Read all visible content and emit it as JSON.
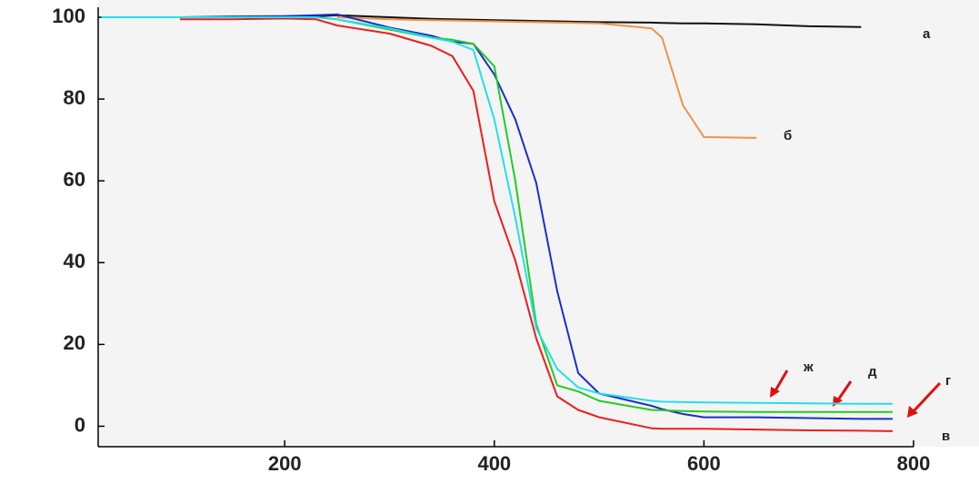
{
  "chart_data": {
    "type": "line",
    "x": [
      25,
      100,
      150,
      200,
      230,
      250,
      300,
      340,
      360,
      380,
      400,
      420,
      440,
      460,
      480,
      500,
      550,
      560,
      580,
      600,
      650,
      700,
      750,
      780
    ],
    "series": [
      {
        "name": "а",
        "color": "#111111",
        "values": [
          100,
          100,
          100,
          100,
          100.2,
          100.5,
          100,
          99.6,
          99.5,
          99.4,
          99.3,
          99.2,
          99.1,
          99,
          98.9,
          98.8,
          98.7,
          98.6,
          98.5,
          98.5,
          98.3,
          97.8,
          97.6,
          null
        ]
      },
      {
        "name": "б",
        "color": "#f0924a",
        "values": [
          null,
          null,
          null,
          null,
          null,
          100,
          99.5,
          99.3,
          99.2,
          99.1,
          99,
          98.9,
          98.8,
          98.7,
          98.6,
          98.5,
          97.3,
          95,
          78.5,
          70.7,
          70.5,
          null,
          null,
          null
        ]
      },
      {
        "name": "в",
        "color": "#ee1c1c",
        "values": [
          null,
          99.5,
          99.5,
          99.7,
          99.5,
          98,
          96,
          93,
          90.5,
          82,
          55,
          40.5,
          21.5,
          7.3,
          4,
          2.2,
          -0.5,
          -0.6,
          -0.6,
          -0.6,
          -0.8,
          -1,
          -1.1,
          -1.2
        ]
      },
      {
        "name": "г",
        "color": "#1a2fc8",
        "values": [
          null,
          100,
          100.2,
          100.3,
          100.5,
          100.7,
          97.5,
          95.5,
          94,
          93.5,
          86,
          75,
          59.5,
          33,
          13,
          8,
          5,
          4.2,
          3,
          2.2,
          2.2,
          2,
          1.8,
          1.8
        ]
      },
      {
        "name": "д",
        "color": "#22cc22",
        "values": [
          100,
          100,
          100,
          100,
          100,
          99.5,
          97,
          95,
          94.5,
          93.5,
          88,
          60,
          25,
          10,
          8.5,
          6.2,
          4,
          3.9,
          3.7,
          3.6,
          3.5,
          3.5,
          3.5,
          3.5
        ]
      },
      {
        "name": "ж",
        "color": "#22e0e8",
        "values": [
          100,
          100,
          100,
          100,
          100,
          99.5,
          97.3,
          95,
          94,
          92,
          75,
          51,
          24,
          14,
          9.5,
          8,
          6.2,
          6,
          5.9,
          5.8,
          5.7,
          5.6,
          5.5,
          5.5
        ]
      }
    ],
    "xlim": [
      22,
      800
    ],
    "ylim": [
      -5,
      102
    ],
    "xticks": [
      200,
      400,
      600,
      800
    ],
    "yticks": [
      0,
      20,
      40,
      60,
      80,
      100
    ]
  }
}
